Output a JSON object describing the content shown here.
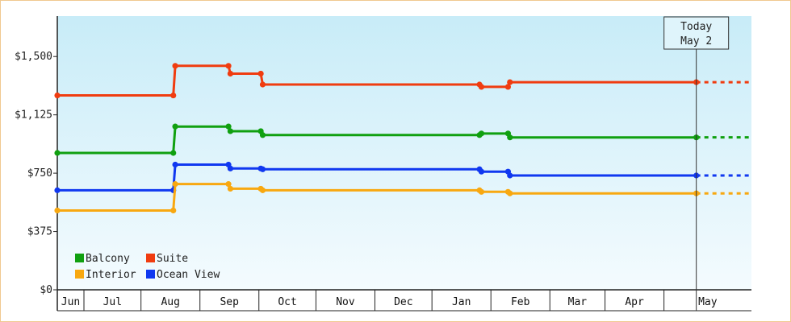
{
  "chart_data": {
    "type": "line",
    "step": true,
    "ylim": [
      0,
      1760
    ],
    "yticks": [
      {
        "value": 0,
        "label": "$0"
      },
      {
        "value": 375,
        "label": "$375"
      },
      {
        "value": 750,
        "label": "$750"
      },
      {
        "value": 1125,
        "label": "$1,125"
      },
      {
        "value": 1500,
        "label": "$1,500"
      }
    ],
    "xlim": [
      "2023-06-01",
      "2024-05-31"
    ],
    "months": [
      {
        "label": "Jun",
        "start": "2023-06-01",
        "end": "2023-06-15"
      },
      {
        "label": "Jul",
        "start": "2023-06-15",
        "end": "2023-07-15"
      },
      {
        "label": "Aug",
        "start": "2023-07-15",
        "end": "2023-08-15"
      },
      {
        "label": "Sep",
        "start": "2023-08-15",
        "end": "2023-09-15"
      },
      {
        "label": "Oct",
        "start": "2023-09-15",
        "end": "2023-10-15"
      },
      {
        "label": "Nov",
        "start": "2023-10-15",
        "end": "2023-11-15"
      },
      {
        "label": "Dec",
        "start": "2023-11-15",
        "end": "2023-12-15"
      },
      {
        "label": "Jan",
        "start": "2023-12-15",
        "end": "2024-01-15"
      },
      {
        "label": "Feb",
        "start": "2024-01-15",
        "end": "2024-02-15"
      },
      {
        "label": "Mar",
        "start": "2024-02-15",
        "end": "2024-03-15"
      },
      {
        "label": "Apr",
        "start": "2024-03-15",
        "end": "2024-04-15"
      },
      {
        "label": "May",
        "start": "2024-04-15",
        "end": "2024-05-31"
      }
    ],
    "today": {
      "date": "2024-05-02",
      "label_line1": "Today",
      "label_line2": "May 2"
    },
    "projection_end": "2024-05-31",
    "series": [
      {
        "name": "Suite",
        "color": "#f03c10",
        "points": [
          {
            "date": "2023-06-01",
            "value": 1250
          },
          {
            "date": "2023-08-01",
            "value": 1250
          },
          {
            "date": "2023-08-02",
            "value": 1440
          },
          {
            "date": "2023-08-30",
            "value": 1440
          },
          {
            "date": "2023-08-31",
            "value": 1390
          },
          {
            "date": "2023-09-16",
            "value": 1390
          },
          {
            "date": "2023-09-17",
            "value": 1320
          },
          {
            "date": "2024-01-09",
            "value": 1320
          },
          {
            "date": "2024-01-10",
            "value": 1305
          },
          {
            "date": "2024-01-24",
            "value": 1305
          },
          {
            "date": "2024-01-25",
            "value": 1335
          },
          {
            "date": "2024-05-02",
            "value": 1335
          }
        ]
      },
      {
        "name": "Balcony",
        "color": "#10a010",
        "points": [
          {
            "date": "2023-06-01",
            "value": 880
          },
          {
            "date": "2023-08-01",
            "value": 880
          },
          {
            "date": "2023-08-02",
            "value": 1050
          },
          {
            "date": "2023-08-30",
            "value": 1050
          },
          {
            "date": "2023-08-31",
            "value": 1020
          },
          {
            "date": "2023-09-16",
            "value": 1020
          },
          {
            "date": "2023-09-17",
            "value": 995
          },
          {
            "date": "2024-01-09",
            "value": 995
          },
          {
            "date": "2024-01-10",
            "value": 1005
          },
          {
            "date": "2024-01-24",
            "value": 1005
          },
          {
            "date": "2024-01-25",
            "value": 980
          },
          {
            "date": "2024-05-02",
            "value": 980
          }
        ]
      },
      {
        "name": "Ocean View",
        "color": "#1038f0",
        "points": [
          {
            "date": "2023-06-01",
            "value": 640
          },
          {
            "date": "2023-08-01",
            "value": 640
          },
          {
            "date": "2023-08-02",
            "value": 805
          },
          {
            "date": "2023-08-30",
            "value": 805
          },
          {
            "date": "2023-08-31",
            "value": 780
          },
          {
            "date": "2023-09-16",
            "value": 780
          },
          {
            "date": "2023-09-17",
            "value": 775
          },
          {
            "date": "2024-01-09",
            "value": 775
          },
          {
            "date": "2024-01-10",
            "value": 760
          },
          {
            "date": "2024-01-24",
            "value": 760
          },
          {
            "date": "2024-01-25",
            "value": 735
          },
          {
            "date": "2024-05-02",
            "value": 735
          }
        ]
      },
      {
        "name": "Interior",
        "color": "#f8a810",
        "points": [
          {
            "date": "2023-06-01",
            "value": 510
          },
          {
            "date": "2023-08-01",
            "value": 510
          },
          {
            "date": "2023-08-02",
            "value": 680
          },
          {
            "date": "2023-08-30",
            "value": 680
          },
          {
            "date": "2023-08-31",
            "value": 650
          },
          {
            "date": "2023-09-16",
            "value": 650
          },
          {
            "date": "2023-09-17",
            "value": 640
          },
          {
            "date": "2024-01-09",
            "value": 640
          },
          {
            "date": "2024-01-10",
            "value": 630
          },
          {
            "date": "2024-01-24",
            "value": 630
          },
          {
            "date": "2024-01-25",
            "value": 620
          },
          {
            "date": "2024-05-02",
            "value": 620
          }
        ]
      }
    ],
    "legend": {
      "placement": "bottom-left",
      "rows": [
        [
          "Balcony",
          "Suite"
        ],
        [
          "Interior",
          "Ocean View"
        ]
      ]
    },
    "background": {
      "top_color": "#c8ecf8",
      "bottom_color": "#f4fbfe"
    }
  }
}
